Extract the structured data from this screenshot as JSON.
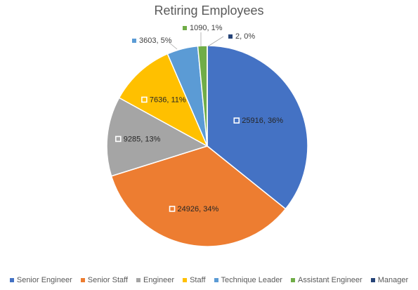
{
  "chart_data": {
    "type": "pie",
    "title": "Retiring Employees",
    "slices": [
      {
        "name": "Senior Engineer",
        "value": 25916,
        "label": "25916, 36%",
        "color": "#4472C4"
      },
      {
        "name": "Senior Staff",
        "value": 24926,
        "label": "24926, 34%",
        "color": "#ED7D31"
      },
      {
        "name": "Engineer",
        "value": 9285,
        "label": "9285, 13%",
        "color": "#A5A5A5"
      },
      {
        "name": "Staff",
        "value": 7636,
        "label": "7636, 11%",
        "color": "#FFC000"
      },
      {
        "name": "Technique Leader",
        "value": 3603,
        "label": "3603, 5%",
        "color": "#5B9BD5"
      },
      {
        "name": "Assistant Engineer",
        "value": 1090,
        "label": "1090, 1%",
        "color": "#70AD47"
      },
      {
        "name": "Manager",
        "value": 2,
        "label": "2, 0%",
        "color": "#264478"
      }
    ],
    "legend_position": "bottom"
  }
}
